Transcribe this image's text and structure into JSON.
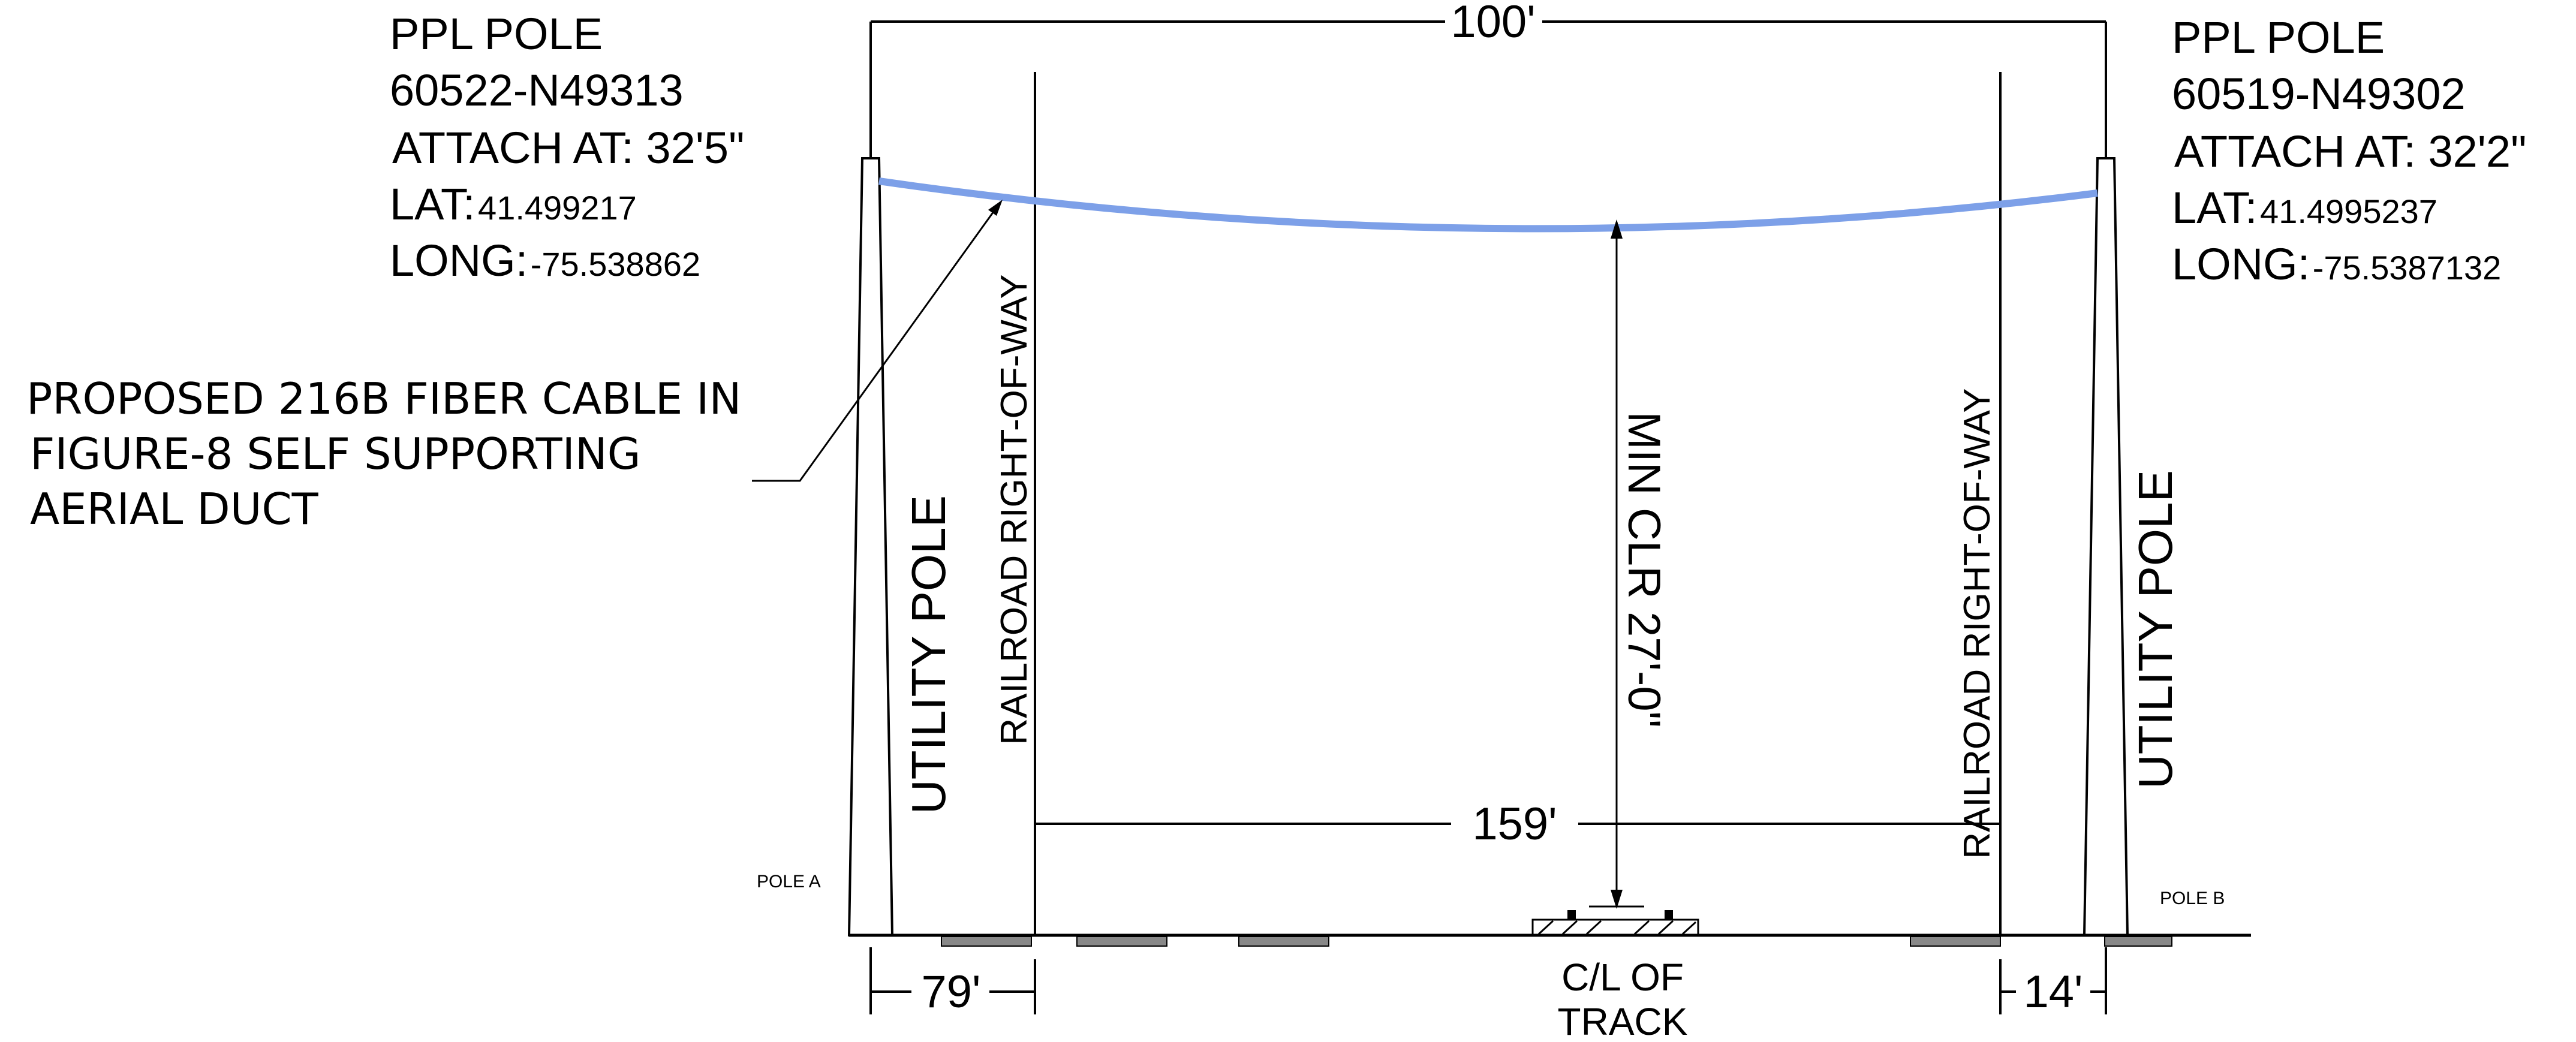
{
  "pole_a": {
    "title": "PPL POLE",
    "number": "60522-N49313",
    "attach_label": "ATTACH AT:",
    "attach_value": "32'5\"",
    "lat_label": "LAT:",
    "lat_value": "41.499217",
    "long_label": "LONG:",
    "long_value": "-75.538862",
    "tag": "POLE A",
    "pole_label": "UTILITY POLE"
  },
  "pole_b": {
    "title": "PPL POLE",
    "number": "60519-N49302",
    "attach_label": "ATTACH AT:",
    "attach_value": "32'2\"",
    "lat_label": "LAT:",
    "lat_value": "41.4995237",
    "long_label": "LONG:",
    "long_value": "-75.5387132",
    "tag": "POLE B",
    "pole_label": "UTILITY POLE"
  },
  "callout": {
    "line1": "PROPOSED 216B FIBER CABLE IN",
    "line2": "FIGURE-8 SELF SUPPORTING",
    "line3": "AERIAL DUCT"
  },
  "row_left": "RAILROAD RIGHT-OF-WAY",
  "row_right": "RAILROAD RIGHT-OF-WAY",
  "clearance": "MIN CLR 27'-0\"",
  "dims": {
    "span": "100'",
    "row_width": "159'",
    "left_offset": "79'",
    "right_offset": "14'"
  },
  "track": {
    "line1": "C/L OF",
    "line2": "TRACK"
  },
  "colors": {
    "cable": "#7da0e8",
    "line": "#000000"
  }
}
